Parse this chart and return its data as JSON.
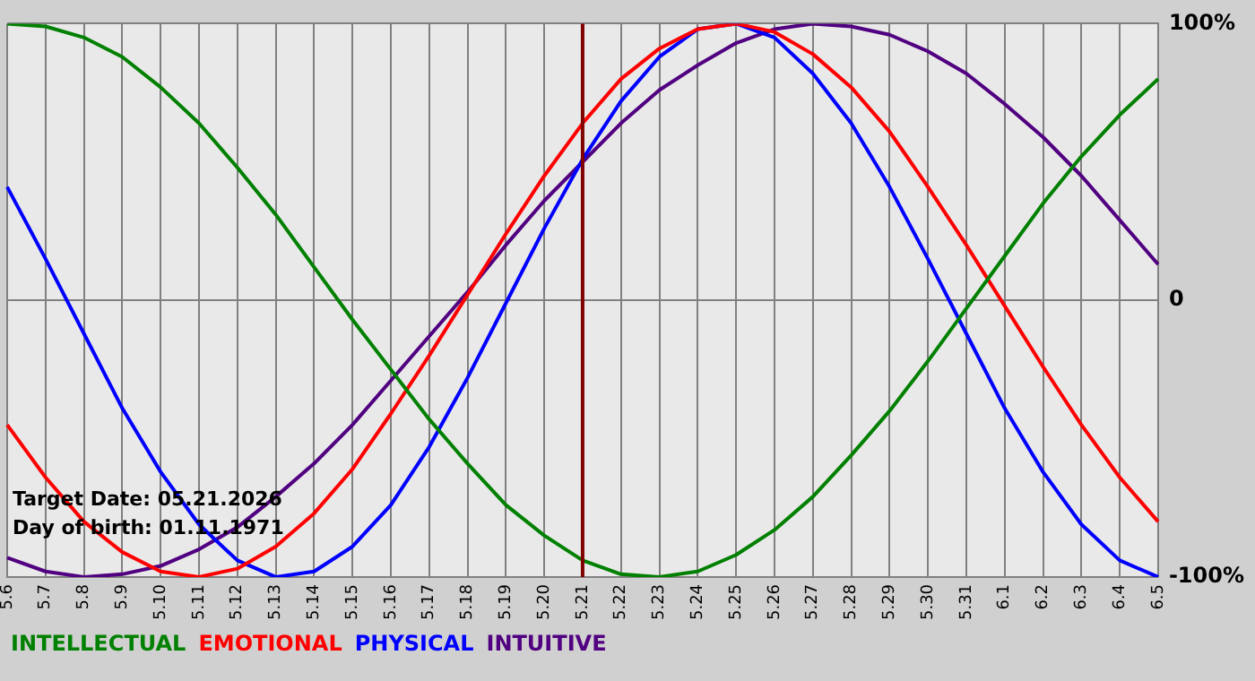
{
  "chart_data": {
    "type": "line",
    "categories": [
      "5.6",
      "5.7",
      "5.8",
      "5.9",
      "5.10",
      "5.11",
      "5.12",
      "5.13",
      "5.14",
      "5.15",
      "5.16",
      "5.17",
      "5.18",
      "5.19",
      "5.20",
      "5.21",
      "5.22",
      "5.23",
      "5.24",
      "5.25",
      "5.26",
      "5.27",
      "5.28",
      "5.29",
      "5.30",
      "5.31",
      "6.1",
      "6.2",
      "6.3",
      "6.4",
      "6.5"
    ],
    "series": [
      {
        "name": "INTELLECTUAL",
        "color": "#008000",
        "values": [
          100,
          99,
          95,
          88,
          77,
          64,
          48,
          31,
          12,
          -7,
          -25,
          -43,
          -59,
          -74,
          -85,
          -94,
          -99,
          -100,
          -98,
          -92,
          -83,
          -71,
          -56,
          -40,
          -22,
          -3,
          16,
          35,
          52,
          67,
          80
        ]
      },
      {
        "name": "EMOTIONAL",
        "color": "#ff0000",
        "values": [
          -45,
          -64,
          -80,
          -91,
          -98,
          -100,
          -97,
          -89,
          -77,
          -61,
          -41,
          -20,
          2,
          24,
          45,
          64,
          80,
          91,
          98,
          100,
          97,
          89,
          77,
          61,
          41,
          20,
          -2,
          -24,
          -45,
          -64,
          -80
        ]
      },
      {
        "name": "PHYSICAL",
        "color": "#0000ff",
        "values": [
          41,
          15,
          -12,
          -39,
          -62,
          -81,
          -94,
          -100,
          -98,
          -89,
          -74,
          -53,
          -28,
          -1,
          26,
          51,
          72,
          88,
          98,
          100,
          95,
          82,
          64,
          41,
          15,
          -12,
          -39,
          -62,
          -81,
          -94,
          -100
        ]
      },
      {
        "name": "INTUITIVE",
        "color": "#500080",
        "values": [
          -93,
          -98,
          -100,
          -99,
          -96,
          -90,
          -82,
          -71,
          -59,
          -45,
          -29,
          -13,
          3,
          20,
          36,
          50,
          64,
          76,
          85,
          93,
          98,
          100,
          99,
          96,
          90,
          82,
          71,
          59,
          45,
          29,
          13
        ]
      }
    ],
    "ylim": [
      -100,
      100
    ],
    "yticks": [
      {
        "value": -100,
        "label": "-100%"
      },
      {
        "value": 0,
        "label": "0"
      },
      {
        "value": 100,
        "label": "100%"
      }
    ],
    "grid": true,
    "legend": "bottom",
    "marker": "none",
    "line_style": "solid",
    "ref_lines": [
      {
        "axis": "x",
        "value": "5.21",
        "color": "#800000"
      }
    ],
    "annotations": [
      "Target Date: 05.21.2026",
      "Day of birth: 01.11.1971"
    ]
  }
}
